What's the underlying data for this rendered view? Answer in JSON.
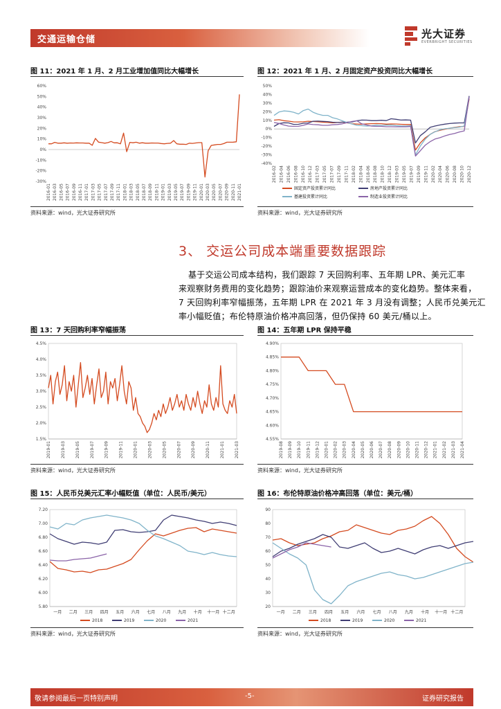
{
  "header": {
    "section": "交通运输仓储",
    "brand": "光大证券",
    "brand_sub": "EVERBRIGHT SECURITIES"
  },
  "figures": {
    "fig11": {
      "title": "图 11：2021 年 1 月、2 月工业增加值同比大幅增长",
      "source": "资料来源：wind，光大证券研究所"
    },
    "fig12": {
      "title": "图 12：2021 年 1 月、2 月固定资产投资同比大幅增长",
      "source": "资料来源：wind，光大证券研究所"
    },
    "fig13": {
      "title": "图 13：7 天回购利率窄幅振荡",
      "source": "资料来源：wind，光大证券研究所"
    },
    "fig14": {
      "title": "图 14：五年期 LPR 保持平稳",
      "source": "资料来源：wind，光大证券研究所"
    },
    "fig15": {
      "title": "图 15：人民币兑美元汇率小幅贬值（单位：人民币/美元）",
      "source": "资料来源：wind，光大证券研究所"
    },
    "fig16": {
      "title": "图 16：布伦特原油价格冲高回落（单位：美元/桶）",
      "source": "资料来源：wind，光大证券研究所"
    }
  },
  "section": {
    "title": "3、 交运公司成本端重要数据跟踪",
    "body_lines": [
      "基于交运公司成本结构，我们跟踪 7 天回购利率、五年期 LPR、美元汇率",
      "来观察财务费用的变化趋势；跟踪油价来观察运营成本的变化趋势。整体来看，",
      "7 天回购利率窄幅振荡，五年期 LPR 在 2021 年 3 月没有调整；人民币兑美元汇",
      "率小幅贬值；布伦特原油价格冲高回落，但仍保持 60 美元/桶以上。"
    ]
  },
  "footer": {
    "left": "敬请参阅最后一页特别声明",
    "page": "-5-",
    "right": "证券研究报告"
  },
  "colors": {
    "red": "#d44a1f",
    "navy": "#3f3d73",
    "teal": "#7fb3c9",
    "purple": "#8a63a8"
  },
  "chart_data": [
    {
      "id": "fig11",
      "type": "line",
      "ylim": [
        -30,
        60
      ],
      "yticks": [
        "60%",
        "50%",
        "40%",
        "30%",
        "20%",
        "10%",
        "0%",
        "-10%",
        "-20%",
        "-30%"
      ],
      "xticks": [
        "2016-01",
        "2016-03",
        "2016-05",
        "2016-07",
        "2016-09",
        "2016-11",
        "2017-01",
        "2017-03",
        "2017-05",
        "2017-07",
        "2017-09",
        "2017-11",
        "2018-01",
        "2018-03",
        "2018-05",
        "2018-07",
        "2018-09",
        "2018-11",
        "2019-01",
        "2019-03",
        "2019-05",
        "2019-07",
        "2019-09",
        "2019-11",
        "2020-01",
        "2020-03",
        "2020-05",
        "2020-07",
        "2020-09",
        "2020-11",
        "2021-01"
      ],
      "series": [
        {
          "color": "#d44a1f",
          "values": [
            5.4,
            5.4,
            6.8,
            6.0,
            6.0,
            6.3,
            6.0,
            6.2,
            6.1,
            6.3,
            6.2,
            6.2,
            6.0,
            6.0,
            4.0,
            10.5,
            7.0,
            6.5,
            6.0,
            6.5,
            7.6,
            6.3,
            6.4,
            5.4,
            15.5,
            -2.0,
            6.8,
            6.4,
            6.9,
            6.0,
            6.4,
            6.0,
            6.0,
            6.2,
            6.1,
            6.1,
            5.7,
            5.4,
            5.8,
            6.0,
            8.5,
            5.4,
            5.0,
            5.0,
            4.8,
            6.0,
            5.8,
            6.2,
            6.5,
            6.5,
            -25.9,
            -1.1,
            3.9,
            4.4,
            4.8,
            4.8,
            5.6,
            6.9,
            6.9,
            7.0,
            7.3,
            52.0
          ]
        }
      ]
    },
    {
      "id": "fig12",
      "type": "line",
      "ylim": [
        -40,
        50
      ],
      "yticks": [
        "50%",
        "40%",
        "30%",
        "20%",
        "10%",
        "0%",
        "-10%",
        "-20%",
        "-30%",
        "-40%"
      ],
      "xticks": [
        "2016-02",
        "2016-04",
        "2016-06",
        "2016-08",
        "2016-10",
        "2016-12",
        "2017-03",
        "2017-05",
        "2017-07",
        "2017-09",
        "2017-11",
        "2018-02",
        "2018-04",
        "2018-06",
        "2018-08",
        "2018-10",
        "2018-12",
        "2019-03",
        "2019-05",
        "2019-07",
        "2019-09",
        "2019-11",
        "2020-02",
        "2020-04",
        "2020-06",
        "2020-08",
        "2020-10",
        "2020-12"
      ],
      "legend": [
        "固定资产投资累计同比",
        "房地产投资累计同比",
        "基建投资累计同比",
        "制造业投资累计同比"
      ],
      "series": [
        {
          "name": "固定资产投资累计同比",
          "color": "#d44a1f",
          "values": [
            10.2,
            10.7,
            9.6,
            9.0,
            8.2,
            8.1,
            8.3,
            8.9,
            8.6,
            8.3,
            7.8,
            7.5,
            7.2,
            7.5,
            7.9,
            7.0,
            6.0,
            5.7,
            5.4,
            5.9,
            6.1,
            6.3,
            6.1,
            5.6,
            5.8,
            5.7,
            5.4,
            5.2,
            5.2,
            -24.5,
            -16.1,
            -10.3,
            -6.3,
            -3.1,
            -1.6,
            -0.3,
            0.8,
            1.8,
            2.6,
            2.9,
            35.0
          ]
        },
        {
          "name": "房地产投资累计同比",
          "color": "#3f3d73",
          "values": [
            3.0,
            6.2,
            7.2,
            7.0,
            5.3,
            5.4,
            6.6,
            6.9,
            8.9,
            9.1,
            8.8,
            8.5,
            7.8,
            7.5,
            7.8,
            7.9,
            8.1,
            9.5,
            10.3,
            10.2,
            9.7,
            9.7,
            10.1,
            9.7,
            11.8,
            11.2,
            10.3,
            10.5,
            10.2,
            -16.3,
            -7.7,
            -3.3,
            1.9,
            3.4,
            4.6,
            5.6,
            6.3,
            6.8,
            7.0,
            7.0,
            38.3
          ]
        },
        {
          "name": "基建投资累计同比",
          "color": "#7fb3c9",
          "values": [
            15.7,
            19.6,
            20.9,
            20.5,
            19.4,
            17.4,
            21.3,
            23.1,
            19.4,
            17.1,
            15.8,
            15.8,
            13.0,
            11.6,
            9.4,
            7.3,
            5.7,
            4.2,
            3.8,
            3.3,
            3.7,
            4.4,
            4.1,
            4.4,
            4.5,
            3.8,
            3.5,
            3.3,
            3.8,
            -30.3,
            -19.7,
            -11.8,
            -6.3,
            -3.3,
            -1.0,
            0.2,
            0.9,
            1.5,
            2.1,
            3.4,
            36.6
          ]
        },
        {
          "name": "制造业投资累计同比",
          "color": "#8a63a8",
          "values": [
            7.5,
            6.4,
            4.6,
            3.3,
            3.0,
            3.1,
            4.2,
            5.8,
            5.1,
            4.8,
            4.2,
            4.2,
            4.8,
            5.2,
            6.0,
            7.3,
            8.7,
            9.5,
            5.9,
            4.6,
            3.3,
            3.0,
            3.0,
            2.6,
            2.6,
            2.5,
            2.5,
            2.5,
            2.8,
            -31.5,
            -25.2,
            -18.8,
            -14.8,
            -11.7,
            -10.2,
            -8.1,
            -6.5,
            -5.3,
            -3.5,
            -2.2,
            37.3
          ]
        }
      ]
    },
    {
      "id": "fig13",
      "type": "line",
      "ylim": [
        1.5,
        4.5
      ],
      "yticks": [
        "4.5%",
        "4.0%",
        "3.5%",
        "3.0%",
        "2.5%",
        "2.0%",
        "1.5%"
      ],
      "xticks": [
        "2019-01",
        "2019-03",
        "2019-05",
        "2019-07",
        "2019-09",
        "2019-11",
        "2020-01",
        "2020-03",
        "2020-05",
        "2020-07",
        "2020-09",
        "2020-11",
        "2021-01",
        "2021-03"
      ],
      "series": [
        {
          "color": "#d44a1f",
          "values": [
            3.1,
            3.5,
            2.6,
            3.3,
            3.6,
            2.9,
            3.2,
            3.8,
            2.7,
            3.3,
            3.0,
            3.5,
            2.5,
            3.2,
            3.9,
            2.8,
            3.1,
            3.5,
            2.9,
            3.4,
            2.6,
            3.2,
            3.7,
            2.8,
            3.0,
            3.6,
            2.6,
            3.3,
            3.1,
            3.4,
            2.7,
            3.2,
            3.8,
            3.0,
            2.6,
            3.3,
            3.1,
            2.4,
            2.8,
            2.3,
            2.2,
            2.0,
            1.9,
            1.7,
            1.8,
            2.0,
            2.3,
            2.1,
            2.4,
            2.2,
            2.6,
            2.3,
            2.5,
            2.8,
            2.4,
            2.6,
            2.9,
            2.5,
            2.7,
            2.4,
            2.9,
            2.6,
            2.4,
            2.8,
            2.5,
            3.0,
            2.6,
            2.3,
            2.7,
            2.5,
            3.2,
            2.6,
            2.4,
            2.8,
            2.5,
            3.8,
            2.6,
            2.4,
            2.3,
            2.7,
            2.5,
            2.9,
            2.3
          ]
        }
      ]
    },
    {
      "id": "fig14",
      "type": "line",
      "ylim": [
        4.55,
        4.9
      ],
      "yticks": [
        "4.90%",
        "4.85%",
        "4.80%",
        "4.75%",
        "4.70%",
        "4.65%",
        "4.60%",
        "4.55%"
      ],
      "xticks": [
        "2019-08",
        "2019-09",
        "2019-10",
        "2019-11",
        "2019-12",
        "2020-01",
        "2020-02",
        "2020-03",
        "2020-04",
        "2020-05",
        "2020-06",
        "2020-07",
        "2020-08",
        "2020-09",
        "2020-10",
        "2020-11",
        "2020-12",
        "2021-01",
        "2021-02",
        "2021-03",
        "2021-04"
      ],
      "series": [
        {
          "color": "#d44a1f",
          "values": [
            4.85,
            4.85,
            4.85,
            4.8,
            4.8,
            4.8,
            4.75,
            4.75,
            4.65,
            4.65,
            4.65,
            4.65,
            4.65,
            4.65,
            4.65,
            4.65,
            4.65,
            4.65,
            4.65,
            4.65,
            4.65
          ]
        }
      ]
    },
    {
      "id": "fig15",
      "type": "line",
      "ylim": [
        5.8,
        7.2
      ],
      "yticks": [
        "7.20",
        "7.00",
        "6.80",
        "6.60",
        "6.40",
        "6.20",
        "6.00",
        "5.80"
      ],
      "xticks": [
        "一月",
        "二月",
        "三月",
        "四月",
        "五月",
        "六月",
        "七月",
        "八月",
        "九月",
        "十月",
        "十一月",
        "十二月"
      ],
      "legend": [
        "2018",
        "2019",
        "2020",
        "2021"
      ],
      "series": [
        {
          "name": "2018",
          "color": "#d44a1f",
          "values": [
            6.45,
            6.35,
            6.33,
            6.3,
            6.31,
            6.29,
            6.33,
            6.34,
            6.38,
            6.42,
            6.48,
            6.62,
            6.75,
            6.85,
            6.82,
            6.86,
            6.9,
            6.93,
            6.94,
            6.88,
            6.92,
            6.9,
            6.88,
            6.86
          ]
        },
        {
          "name": "2019",
          "color": "#3f3d73",
          "values": [
            6.85,
            6.78,
            6.74,
            6.7,
            6.73,
            6.72,
            6.7,
            6.73,
            6.9,
            6.91,
            6.88,
            6.87,
            6.88,
            6.9,
            7.05,
            7.12,
            7.1,
            7.08,
            7.05,
            7.03,
            7.0,
            7.02,
            7.0,
            6.97
          ]
        },
        {
          "name": "2020",
          "color": "#7fb3c9",
          "values": [
            6.95,
            6.92,
            7.0,
            6.98,
            7.05,
            7.08,
            7.1,
            7.12,
            7.1,
            7.08,
            7.05,
            7.0,
            6.9,
            6.82,
            6.78,
            6.73,
            6.68,
            6.6,
            6.58,
            6.55,
            6.58,
            6.55,
            6.53,
            6.52
          ]
        },
        {
          "name": "2021",
          "color": "#8a63a8",
          "values": [
            6.47,
            6.46,
            6.46,
            6.48,
            6.49,
            6.5,
            6.53,
            6.56
          ]
        }
      ]
    },
    {
      "id": "fig16",
      "type": "line",
      "ylim": [
        20,
        90
      ],
      "yticks": [
        "90",
        "80",
        "70",
        "60",
        "50",
        "40",
        "30",
        "20"
      ],
      "xticks": [
        "一月",
        "二月",
        "三月",
        "四月",
        "五月",
        "六月",
        "七月",
        "八月",
        "九月",
        "十月",
        "十一月",
        "十二月"
      ],
      "legend": [
        "2018",
        "2019",
        "2020",
        "2021"
      ],
      "series": [
        {
          "name": "2018",
          "color": "#d44a1f",
          "values": [
            68,
            69,
            66,
            64,
            65,
            66,
            69,
            71,
            74,
            75,
            79,
            77,
            75,
            73,
            72,
            75,
            76,
            78,
            82,
            85,
            80,
            72,
            62,
            56,
            52
          ]
        },
        {
          "name": "2019",
          "color": "#3f3d73",
          "values": [
            56,
            60,
            62,
            65,
            67,
            69,
            72,
            70,
            63,
            62,
            64,
            66,
            62,
            59,
            60,
            62,
            60,
            58,
            61,
            63,
            64,
            62,
            64,
            66,
            67
          ]
        },
        {
          "name": "2020",
          "color": "#7fb3c9",
          "values": [
            66,
            62,
            58,
            55,
            50,
            32,
            25,
            22,
            28,
            35,
            38,
            40,
            42,
            44,
            45,
            43,
            42,
            40,
            41,
            43,
            45,
            47,
            49,
            51,
            52
          ]
        },
        {
          "name": "2021",
          "color": "#8a63a8",
          "values": [
            55,
            58,
            61,
            63,
            66,
            65,
            64,
            63
          ]
        }
      ]
    }
  ]
}
